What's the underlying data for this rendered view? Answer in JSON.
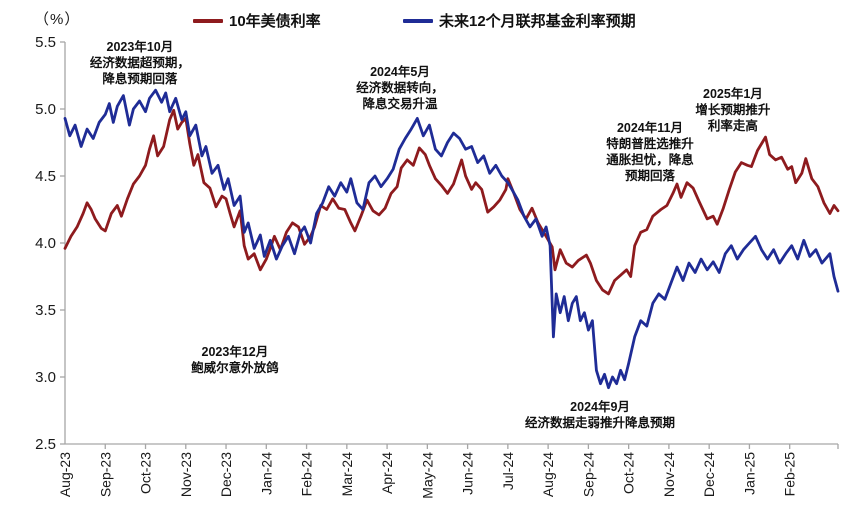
{
  "unit_label": "（%）",
  "colors": {
    "axis": "#a6a6a6",
    "tick_text": "#1a1a1a",
    "background": "#ffffff",
    "series_red": "#8E1B1E",
    "series_blue": "#1F2C96"
  },
  "chart_data": {
    "type": "line",
    "title": "",
    "xlabel": "",
    "ylabel": "（%）",
    "grid": false,
    "legend_position": "top",
    "y_axis": {
      "min": 2.5,
      "max": 5.5,
      "step": 0.5,
      "tick_labels": [
        "2.5",
        "3.0",
        "3.5",
        "4.0",
        "4.5",
        "5.0",
        "5.5"
      ]
    },
    "x_axis": {
      "labels": [
        "Aug-23",
        "Sep-23",
        "Oct-23",
        "Nov-23",
        "Dec-23",
        "Jan-24",
        "Feb-24",
        "Mar-24",
        "Apr-24",
        "May-24",
        "Jun-24",
        "Jul-24",
        "Aug-24",
        "Sep-24",
        "Oct-24",
        "Nov-24",
        "Dec-24",
        "Jan-25",
        "Feb-25"
      ],
      "months_shown": 19.2
    },
    "series": [
      {
        "name": "10年美债利率",
        "color": "#8E1B1E",
        "points": [
          [
            0,
            3.96
          ],
          [
            0.15,
            4.05
          ],
          [
            0.3,
            4.12
          ],
          [
            0.45,
            4.22
          ],
          [
            0.55,
            4.3
          ],
          [
            0.65,
            4.25
          ],
          [
            0.75,
            4.18
          ],
          [
            0.9,
            4.11
          ],
          [
            1,
            4.09
          ],
          [
            1.15,
            4.22
          ],
          [
            1.3,
            4.28
          ],
          [
            1.4,
            4.2
          ],
          [
            1.55,
            4.33
          ],
          [
            1.7,
            4.44
          ],
          [
            1.85,
            4.5
          ],
          [
            2,
            4.58
          ],
          [
            2.1,
            4.7
          ],
          [
            2.2,
            4.8
          ],
          [
            2.3,
            4.65
          ],
          [
            2.45,
            4.72
          ],
          [
            2.6,
            4.92
          ],
          [
            2.7,
            4.99
          ],
          [
            2.8,
            4.85
          ],
          [
            2.9,
            4.9
          ],
          [
            3,
            4.93
          ],
          [
            3.1,
            4.74
          ],
          [
            3.2,
            4.58
          ],
          [
            3.3,
            4.66
          ],
          [
            3.45,
            4.45
          ],
          [
            3.6,
            4.41
          ],
          [
            3.75,
            4.27
          ],
          [
            3.9,
            4.35
          ],
          [
            4,
            4.33
          ],
          [
            4.1,
            4.22
          ],
          [
            4.2,
            4.12
          ],
          [
            4.35,
            4.24
          ],
          [
            4.45,
            3.98
          ],
          [
            4.55,
            3.88
          ],
          [
            4.7,
            3.92
          ],
          [
            4.85,
            3.8
          ],
          [
            5,
            3.88
          ],
          [
            5.1,
            3.96
          ],
          [
            5.2,
            4.05
          ],
          [
            5.35,
            3.95
          ],
          [
            5.5,
            4.08
          ],
          [
            5.65,
            4.15
          ],
          [
            5.8,
            4.12
          ],
          [
            5.95,
            3.99
          ],
          [
            6.1,
            4.05
          ],
          [
            6.2,
            4.12
          ],
          [
            6.35,
            4.28
          ],
          [
            6.5,
            4.25
          ],
          [
            6.65,
            4.33
          ],
          [
            6.8,
            4.26
          ],
          [
            6.95,
            4.25
          ],
          [
            7.1,
            4.15
          ],
          [
            7.2,
            4.09
          ],
          [
            7.35,
            4.2
          ],
          [
            7.5,
            4.32
          ],
          [
            7.65,
            4.24
          ],
          [
            7.8,
            4.21
          ],
          [
            7.95,
            4.26
          ],
          [
            8.1,
            4.37
          ],
          [
            8.25,
            4.42
          ],
          [
            8.35,
            4.56
          ],
          [
            8.5,
            4.62
          ],
          [
            8.65,
            4.58
          ],
          [
            8.8,
            4.71
          ],
          [
            8.95,
            4.66
          ],
          [
            9.05,
            4.58
          ],
          [
            9.2,
            4.48
          ],
          [
            9.35,
            4.43
          ],
          [
            9.5,
            4.37
          ],
          [
            9.65,
            4.44
          ],
          [
            9.85,
            4.62
          ],
          [
            9.95,
            4.5
          ],
          [
            10.1,
            4.4
          ],
          [
            10.2,
            4.45
          ],
          [
            10.35,
            4.4
          ],
          [
            10.5,
            4.23
          ],
          [
            10.65,
            4.27
          ],
          [
            10.8,
            4.32
          ],
          [
            10.95,
            4.4
          ],
          [
            11,
            4.48
          ],
          [
            11.15,
            4.37
          ],
          [
            11.3,
            4.25
          ],
          [
            11.45,
            4.18
          ],
          [
            11.6,
            4.26
          ],
          [
            11.75,
            4.15
          ],
          [
            11.95,
            4.05
          ],
          [
            12.1,
            3.97
          ],
          [
            12.17,
            3.8
          ],
          [
            12.3,
            3.95
          ],
          [
            12.45,
            3.85
          ],
          [
            12.6,
            3.82
          ],
          [
            12.75,
            3.87
          ],
          [
            12.95,
            3.91
          ],
          [
            13.05,
            3.85
          ],
          [
            13.2,
            3.72
          ],
          [
            13.35,
            3.65
          ],
          [
            13.5,
            3.62
          ],
          [
            13.65,
            3.72
          ],
          [
            13.8,
            3.76
          ],
          [
            13.95,
            3.8
          ],
          [
            14.05,
            3.75
          ],
          [
            14.15,
            3.98
          ],
          [
            14.3,
            4.08
          ],
          [
            14.45,
            4.1
          ],
          [
            14.6,
            4.2
          ],
          [
            14.8,
            4.25
          ],
          [
            14.95,
            4.28
          ],
          [
            15.1,
            4.37
          ],
          [
            15.2,
            4.44
          ],
          [
            15.3,
            4.34
          ],
          [
            15.45,
            4.45
          ],
          [
            15.6,
            4.41
          ],
          [
            15.75,
            4.31
          ],
          [
            15.95,
            4.18
          ],
          [
            16.1,
            4.2
          ],
          [
            16.2,
            4.14
          ],
          [
            16.35,
            4.26
          ],
          [
            16.5,
            4.4
          ],
          [
            16.65,
            4.53
          ],
          [
            16.8,
            4.6
          ],
          [
            16.95,
            4.58
          ],
          [
            17.05,
            4.57
          ],
          [
            17.2,
            4.69
          ],
          [
            17.4,
            4.79
          ],
          [
            17.5,
            4.66
          ],
          [
            17.65,
            4.62
          ],
          [
            17.8,
            4.64
          ],
          [
            17.95,
            4.55
          ],
          [
            18.05,
            4.57
          ],
          [
            18.15,
            4.45
          ],
          [
            18.3,
            4.52
          ],
          [
            18.4,
            4.63
          ],
          [
            18.55,
            4.48
          ],
          [
            18.7,
            4.42
          ],
          [
            18.85,
            4.3
          ],
          [
            19,
            4.22
          ],
          [
            19.1,
            4.28
          ],
          [
            19.2,
            4.24
          ]
        ]
      },
      {
        "name": "未来12个月联邦基金利率预期",
        "color": "#1F2C96",
        "points": [
          [
            0,
            4.93
          ],
          [
            0.12,
            4.8
          ],
          [
            0.25,
            4.88
          ],
          [
            0.4,
            4.72
          ],
          [
            0.55,
            4.85
          ],
          [
            0.7,
            4.78
          ],
          [
            0.85,
            4.9
          ],
          [
            1,
            4.96
          ],
          [
            1.1,
            5.04
          ],
          [
            1.2,
            4.9
          ],
          [
            1.3,
            5.02
          ],
          [
            1.45,
            5.1
          ],
          [
            1.6,
            4.88
          ],
          [
            1.7,
            5
          ],
          [
            1.85,
            5.06
          ],
          [
            2,
            4.98
          ],
          [
            2.1,
            5.08
          ],
          [
            2.25,
            5.14
          ],
          [
            2.4,
            5.05
          ],
          [
            2.5,
            5.12
          ],
          [
            2.6,
            4.98
          ],
          [
            2.75,
            5.08
          ],
          [
            2.9,
            4.92
          ],
          [
            3,
            4.98
          ],
          [
            3.1,
            4.8
          ],
          [
            3.25,
            4.88
          ],
          [
            3.4,
            4.65
          ],
          [
            3.5,
            4.72
          ],
          [
            3.65,
            4.52
          ],
          [
            3.8,
            4.58
          ],
          [
            3.95,
            4.4
          ],
          [
            4.05,
            4.48
          ],
          [
            4.2,
            4.28
          ],
          [
            4.35,
            4.35
          ],
          [
            4.45,
            4.08
          ],
          [
            4.55,
            4.15
          ],
          [
            4.7,
            3.96
          ],
          [
            4.85,
            4.06
          ],
          [
            4.95,
            3.9
          ],
          [
            5.1,
            4.02
          ],
          [
            5.25,
            3.88
          ],
          [
            5.4,
            3.98
          ],
          [
            5.55,
            4.05
          ],
          [
            5.7,
            3.92
          ],
          [
            5.85,
            4.08
          ],
          [
            5.95,
            4.12
          ],
          [
            6.1,
            4
          ],
          [
            6.25,
            4.22
          ],
          [
            6.4,
            4.3
          ],
          [
            6.55,
            4.42
          ],
          [
            6.7,
            4.35
          ],
          [
            6.85,
            4.45
          ],
          [
            7,
            4.38
          ],
          [
            7.1,
            4.48
          ],
          [
            7.25,
            4.3
          ],
          [
            7.4,
            4.25
          ],
          [
            7.55,
            4.45
          ],
          [
            7.7,
            4.5
          ],
          [
            7.85,
            4.42
          ],
          [
            8,
            4.48
          ],
          [
            8.15,
            4.55
          ],
          [
            8.3,
            4.7
          ],
          [
            8.45,
            4.78
          ],
          [
            8.6,
            4.85
          ],
          [
            8.75,
            4.93
          ],
          [
            8.9,
            4.8
          ],
          [
            9.05,
            4.88
          ],
          [
            9.2,
            4.7
          ],
          [
            9.35,
            4.65
          ],
          [
            9.5,
            4.75
          ],
          [
            9.65,
            4.82
          ],
          [
            9.8,
            4.78
          ],
          [
            9.95,
            4.7
          ],
          [
            10.1,
            4.72
          ],
          [
            10.25,
            4.6
          ],
          [
            10.4,
            4.65
          ],
          [
            10.55,
            4.52
          ],
          [
            10.7,
            4.58
          ],
          [
            10.85,
            4.5
          ],
          [
            11,
            4.45
          ],
          [
            11.1,
            4.4
          ],
          [
            11.25,
            4.32
          ],
          [
            11.4,
            4.2
          ],
          [
            11.55,
            4.12
          ],
          [
            11.7,
            4.18
          ],
          [
            11.85,
            4.05
          ],
          [
            11.95,
            4.12
          ],
          [
            12.05,
            3.98
          ],
          [
            12.13,
            3.3
          ],
          [
            12.2,
            3.62
          ],
          [
            12.3,
            3.48
          ],
          [
            12.4,
            3.6
          ],
          [
            12.5,
            3.42
          ],
          [
            12.6,
            3.55
          ],
          [
            12.7,
            3.6
          ],
          [
            12.8,
            3.42
          ],
          [
            12.9,
            3.48
          ],
          [
            13,
            3.35
          ],
          [
            13.1,
            3.42
          ],
          [
            13.2,
            3.05
          ],
          [
            13.3,
            2.95
          ],
          [
            13.4,
            3.02
          ],
          [
            13.5,
            2.92
          ],
          [
            13.6,
            3
          ],
          [
            13.7,
            2.95
          ],
          [
            13.8,
            3.05
          ],
          [
            13.9,
            2.98
          ],
          [
            14,
            3.1
          ],
          [
            14.15,
            3.3
          ],
          [
            14.3,
            3.42
          ],
          [
            14.45,
            3.38
          ],
          [
            14.6,
            3.55
          ],
          [
            14.75,
            3.62
          ],
          [
            14.9,
            3.58
          ],
          [
            15.05,
            3.7
          ],
          [
            15.2,
            3.82
          ],
          [
            15.35,
            3.72
          ],
          [
            15.5,
            3.85
          ],
          [
            15.65,
            3.78
          ],
          [
            15.8,
            3.88
          ],
          [
            15.95,
            3.8
          ],
          [
            16.1,
            3.86
          ],
          [
            16.25,
            3.78
          ],
          [
            16.4,
            3.92
          ],
          [
            16.55,
            3.98
          ],
          [
            16.7,
            3.88
          ],
          [
            16.85,
            3.95
          ],
          [
            17,
            4
          ],
          [
            17.15,
            4.05
          ],
          [
            17.3,
            3.95
          ],
          [
            17.45,
            3.88
          ],
          [
            17.6,
            3.95
          ],
          [
            17.75,
            3.85
          ],
          [
            17.9,
            3.92
          ],
          [
            18.05,
            3.98
          ],
          [
            18.2,
            3.88
          ],
          [
            18.35,
            4.02
          ],
          [
            18.5,
            3.9
          ],
          [
            18.65,
            3.95
          ],
          [
            18.8,
            3.85
          ],
          [
            19,
            3.92
          ],
          [
            19.1,
            3.75
          ],
          [
            19.2,
            3.64
          ]
        ]
      }
    ],
    "annotations": [
      {
        "id": "oct-2023",
        "x": 1.86,
        "y": 5.34,
        "lines": [
          "2023年10月",
          "经济数据超预期，",
          "降息预期回落"
        ]
      },
      {
        "id": "may-2024",
        "x": 8.32,
        "y": 5.16,
        "lines": [
          "2024年5月",
          "经济数据转向，",
          "降息交易升温"
        ]
      },
      {
        "id": "jan-2025",
        "x": 16.59,
        "y": 4.99,
        "lines": [
          "2025年1月",
          "增长预期推升",
          "利率走高"
        ]
      },
      {
        "id": "nov-2024",
        "x": 14.53,
        "y": 4.68,
        "lines": [
          "2024年11月",
          "特朗普胜选推升",
          "通胀担忧，降息",
          "预期回落"
        ]
      },
      {
        "id": "dec-2023",
        "x": 4.22,
        "y": 3.13,
        "lines": [
          "2023年12月",
          "鲍威尔意外放鸽"
        ]
      },
      {
        "id": "sep-2024",
        "x": 13.29,
        "y": 2.72,
        "lines": [
          "2024年9月",
          "经济数据走弱推升降息预期"
        ]
      }
    ]
  }
}
